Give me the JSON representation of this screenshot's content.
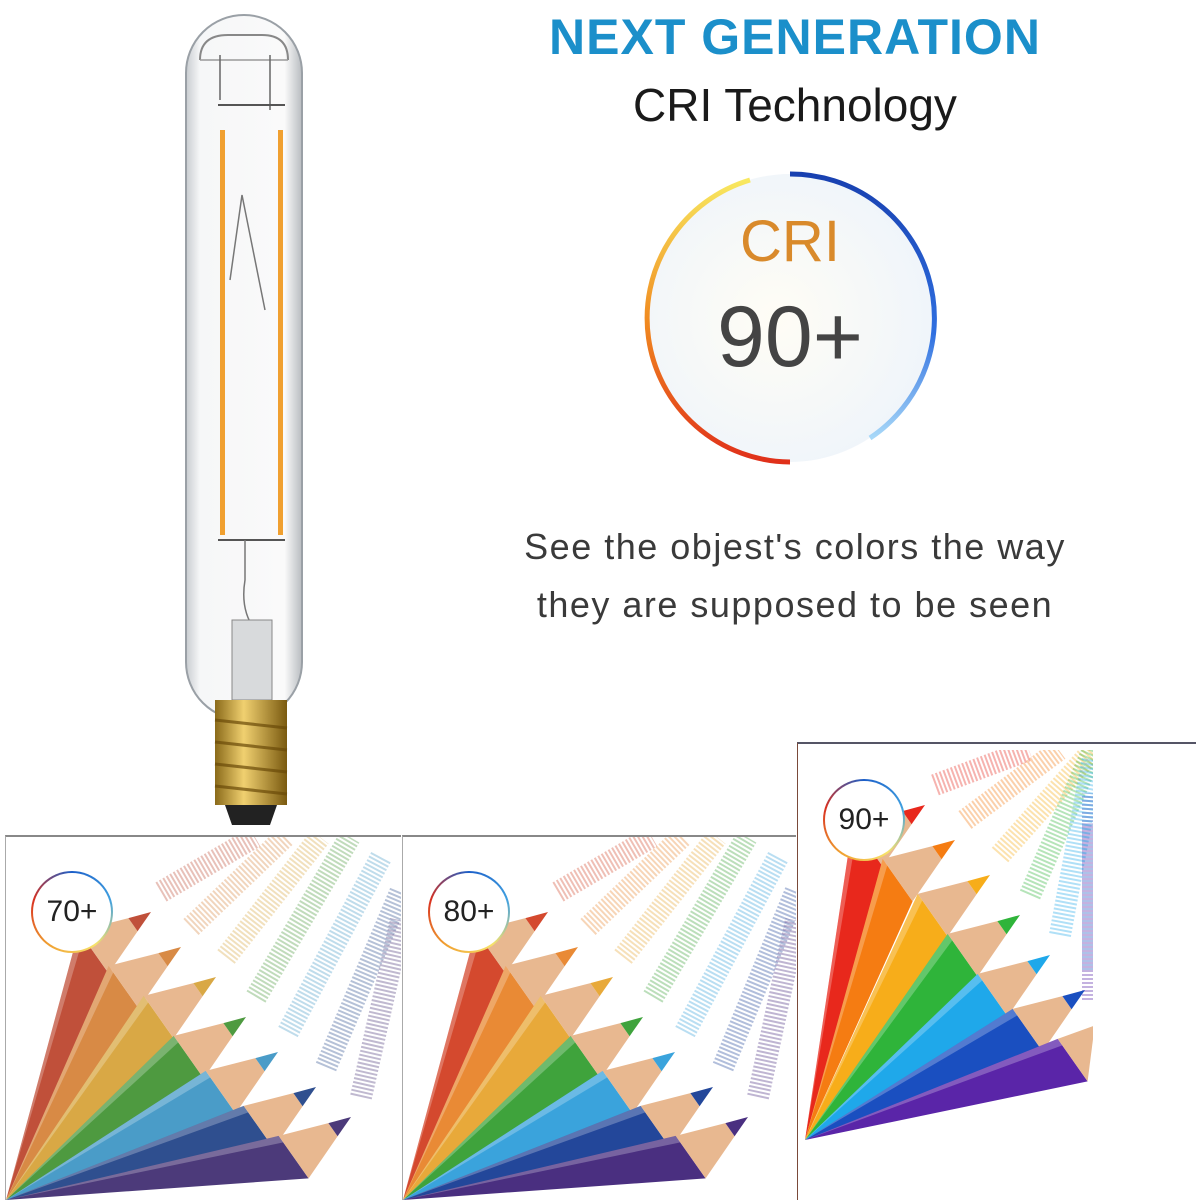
{
  "header": {
    "headline": "NEXT GENERATION",
    "subheadline": "CRI Technology",
    "headline_color": "#1b8fca"
  },
  "badge": {
    "label": "CRI",
    "value": "90+",
    "label_color": "#d98a2b"
  },
  "caption": {
    "line1": "See the objest's colors the way",
    "line2": "they are supposed to be seen"
  },
  "product": {
    "icon": "t-shaped-led-filament-bulb",
    "filament_color": "#f0a030",
    "base_color": "#c9a02a"
  },
  "comparison": [
    {
      "rating": "70+",
      "colors": [
        "#c0503a",
        "#d88a45",
        "#d9a845",
        "#4e9a40",
        "#4a9cc8",
        "#2f4f8f",
        "#4c3a7a"
      ]
    },
    {
      "rating": "80+",
      "colors": [
        "#d4492e",
        "#e98a35",
        "#e8a93a",
        "#3fa33c",
        "#3aa3dc",
        "#23479a",
        "#4a2f80"
      ]
    },
    {
      "rating": "90+",
      "colors": [
        "#e8281c",
        "#f57c12",
        "#f7ad1a",
        "#2fb43a",
        "#1fa8ea",
        "#1a4fc0",
        "#5a25a8"
      ]
    }
  ]
}
